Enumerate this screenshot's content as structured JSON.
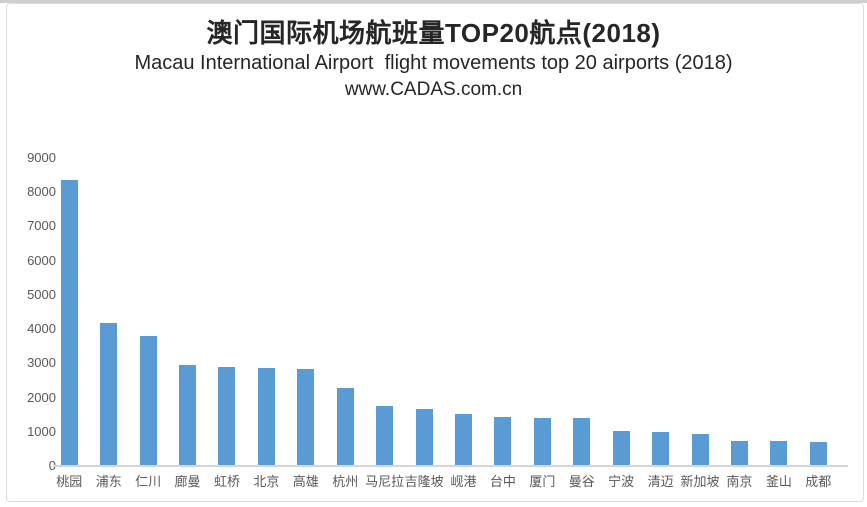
{
  "page": {
    "background": "#ffffff",
    "border_color": "#dcdcdc",
    "top_strip_color": "#cfcfcf"
  },
  "header": {
    "title_cn": "澳门国际机场航班量TOP20航点(2018)",
    "title_en": "Macau International Airport  flight movements top 20 airports (2018)",
    "source": "www.CADAS.com.cn"
  },
  "chart_data": {
    "type": "bar",
    "title": "澳门国际机场航班量TOP20航点(2018)",
    "subtitle": "Macau International Airport  flight movements top 20 airports (2018)",
    "source": "www.CADAS.com.cn",
    "categories": [
      "桃园",
      "浦东",
      "仁川",
      "廊曼",
      "虹桥",
      "北京",
      "高雄",
      "杭州",
      "马尼拉",
      "吉隆坡",
      "岘港",
      "台中",
      "厦门",
      "曼谷",
      "宁波",
      "清迈",
      "新加坡",
      "南京",
      "釜山",
      "成都"
    ],
    "values": [
      8360,
      4180,
      3800,
      2950,
      2880,
      2850,
      2840,
      2280,
      1750,
      1680,
      1510,
      1430,
      1410,
      1390,
      1010,
      980,
      930,
      730,
      720,
      700
    ],
    "xlabel": "",
    "ylabel": "",
    "ylim": [
      0,
      9000
    ],
    "ytick_interval": 1000,
    "grid": false,
    "legend": false,
    "bar_color": "#5b9bd5",
    "axis_label_color": "#595959",
    "axis_line_color": "#d6d6d6"
  }
}
